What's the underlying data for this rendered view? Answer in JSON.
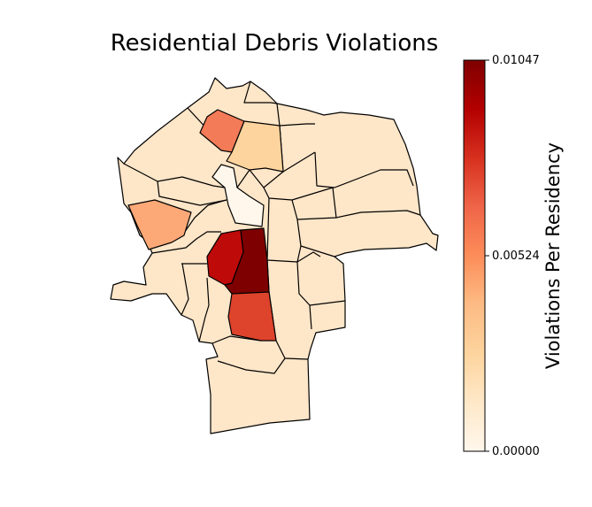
{
  "title": "Residential Debris Violations",
  "colorbar": {
    "label": "Violations Per Residency",
    "min": 0.0,
    "max": 0.01047,
    "ticks": [
      "0.01047",
      "0.00524",
      "0.00000"
    ],
    "colormap": "OrRd",
    "stops": [
      "#fff7ec",
      "#fee8c8",
      "#fdd49e",
      "#fdbb84",
      "#fc8d59",
      "#ef6548",
      "#d7301f",
      "#b30000",
      "#7f0000"
    ]
  },
  "colors": {
    "low": "#fee6c8",
    "border": "#000000"
  },
  "regions": [
    {
      "name": "north-orange-district",
      "value": 0.0068
    },
    {
      "name": "north-peach-district",
      "value": 0.0022
    },
    {
      "name": "center-white-district",
      "value": 0.0001
    },
    {
      "name": "west-orange-district",
      "value": 0.0043
    },
    {
      "name": "center-red-district",
      "value": 0.0093
    },
    {
      "name": "center-darkest-district",
      "value": 0.01047
    },
    {
      "name": "south-red-district",
      "value": 0.008
    }
  ]
}
